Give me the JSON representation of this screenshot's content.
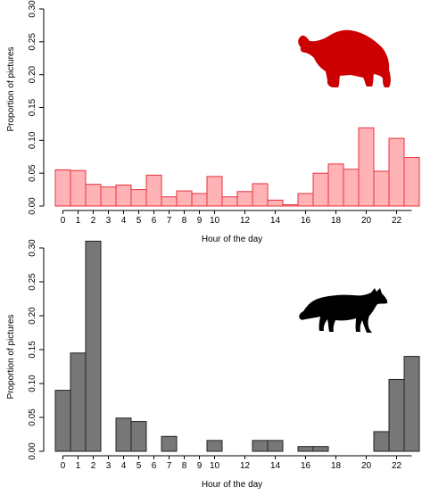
{
  "chart_data": [
    {
      "type": "bar",
      "xlabel": "Hour of the day",
      "ylabel": "Proportion of pictures",
      "ylim": [
        0,
        0.3
      ],
      "yticks": [
        "0.00",
        "0.05",
        "0.10",
        "0.15",
        "0.20",
        "0.25",
        "0.30"
      ],
      "categories": [
        0,
        1,
        2,
        3,
        4,
        5,
        6,
        7,
        8,
        9,
        10,
        11,
        12,
        13,
        14,
        15,
        16,
        17,
        18,
        19,
        20,
        21,
        22,
        23
      ],
      "xtick_labels": [
        "0",
        "1",
        "2",
        "3",
        "4",
        "5",
        "6",
        "7",
        "8",
        "9",
        "10",
        "12",
        "14",
        "16",
        "18",
        "20",
        "22"
      ],
      "values": [
        0.055,
        0.054,
        0.033,
        0.029,
        0.032,
        0.025,
        0.047,
        0.014,
        0.023,
        0.019,
        0.045,
        0.014,
        0.022,
        0.034,
        0.009,
        0.002,
        0.019,
        0.05,
        0.064,
        0.056,
        0.119,
        0.053,
        0.103,
        0.074
      ],
      "bar_fill": "#ffb3b6",
      "bar_stroke": "#e8323a",
      "icon": "bear-silhouette-icon",
      "icon_color": "#cc0000"
    },
    {
      "type": "bar",
      "xlabel": "Hour of the day",
      "ylabel": "Proportion of pictures",
      "ylim": [
        0,
        0.3
      ],
      "yticks": [
        "0.00",
        "0.05",
        "0.10",
        "0.15",
        "0.20",
        "0.25",
        "0.30"
      ],
      "categories": [
        0,
        1,
        2,
        3,
        4,
        5,
        6,
        7,
        8,
        9,
        10,
        11,
        12,
        13,
        14,
        15,
        16,
        17,
        18,
        19,
        20,
        21,
        22,
        23
      ],
      "xtick_labels": [
        "0",
        "1",
        "2",
        "3",
        "4",
        "5",
        "6",
        "7",
        "8",
        "9",
        "10",
        "12",
        "14",
        "16",
        "18",
        "20",
        "22"
      ],
      "values": [
        0.09,
        0.145,
        0.31,
        0.0,
        0.049,
        0.044,
        0.0,
        0.022,
        0.0,
        0.0,
        0.016,
        0.0,
        0.0,
        0.016,
        0.016,
        0.0,
        0.007,
        0.007,
        0.0,
        0.0,
        0.0,
        0.029,
        0.106,
        0.14
      ],
      "bar_fill": "#777777",
      "bar_stroke": "#222222",
      "icon": "wolf-silhouette-icon",
      "icon_color": "#000000"
    }
  ]
}
